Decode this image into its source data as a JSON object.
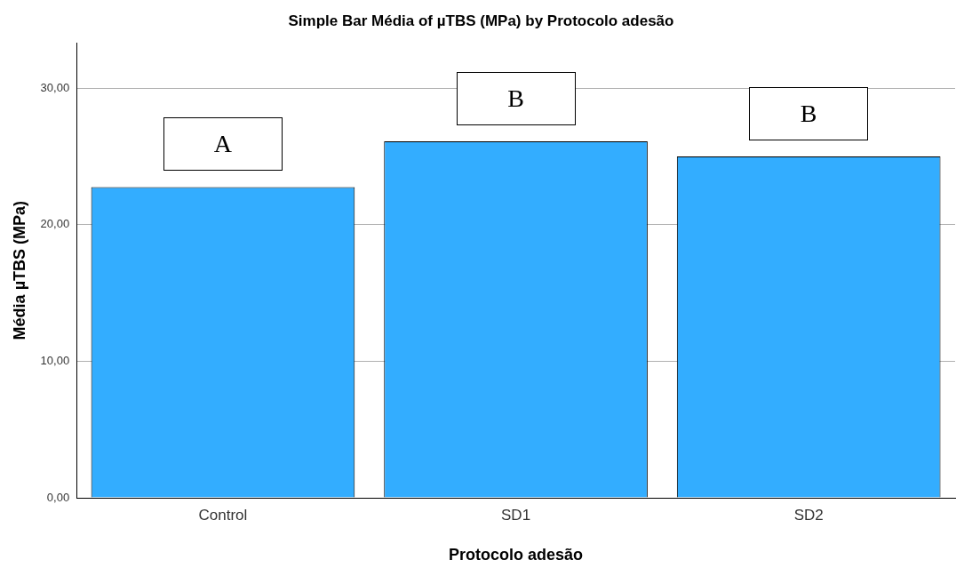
{
  "chart_data": {
    "type": "bar",
    "title": "Simple Bar Média of µTBS (MPa) by Protocolo adesão",
    "xlabel": "Protocolo adesão",
    "ylabel": "Média µTBS (MPa)",
    "categories": [
      "Control",
      "SD1",
      "SD2"
    ],
    "values": [
      22.75,
      26.1,
      25.0
    ],
    "color": "#33adff",
    "ylim": [
      0,
      33.3
    ],
    "yticks": [
      {
        "value": 0,
        "label": "0,00"
      },
      {
        "value": 10,
        "label": "10,00"
      },
      {
        "value": 20,
        "label": "20,00"
      },
      {
        "value": 30,
        "label": "30,00"
      }
    ],
    "grid": "y",
    "legend": false,
    "annotations": [
      "A",
      "B",
      "B"
    ]
  }
}
